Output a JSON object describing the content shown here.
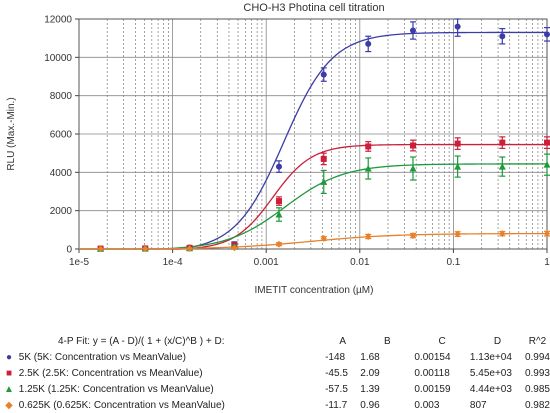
{
  "chart_data": {
    "type": "scatter",
    "title": "CHO-H3 Photina cell titration",
    "xlabel": "IMETIT concentration (µM)",
    "ylabel": "RLU (Max.-Min.)",
    "x_scale": "log",
    "xlim": [
      1e-05,
      1
    ],
    "ylim": [
      0,
      12000
    ],
    "x_ticks": [
      1e-05,
      0.0001,
      0.001,
      0.01,
      0.1,
      1
    ],
    "x_tick_labels": [
      "1e-5",
      "1e-4",
      "0.001",
      "0.01",
      "0.1",
      "1"
    ],
    "y_ticks": [
      0,
      2000,
      4000,
      6000,
      8000,
      10000,
      12000
    ],
    "y_tick_labels": [
      "0",
      "2000",
      "4000",
      "6000",
      "8000",
      "10000",
      "12000"
    ],
    "grid": true,
    "fit_header": {
      "equation": "4-P Fit: y = (A - D)/( 1 + (x/C)^B ) + D:",
      "columns": [
        "A",
        "B",
        "C",
        "D",
        "R^2"
      ]
    },
    "series": [
      {
        "name": "5K (5K: Concentration vs MeanValue)",
        "color": "#3c3ca8",
        "marker": "circle",
        "x": [
          1.7e-05,
          5.1e-05,
          0.000152,
          0.000457,
          0.00137,
          0.00412,
          0.0123,
          0.037,
          0.111,
          0.333,
          1.0
        ],
        "y": [
          30,
          40,
          80,
          250,
          4300,
          9100,
          10700,
          11400,
          11600,
          11100,
          11200
        ],
        "err": [
          40,
          40,
          60,
          120,
          300,
          350,
          400,
          450,
          500,
          400,
          350
        ],
        "fit": {
          "A": "-148",
          "B": "1.68",
          "C": "0.00154",
          "D": "1.13e+04",
          "R2": "0.994"
        },
        "fit_values": {
          "A": -148,
          "B": 1.68,
          "C": 0.00154,
          "D": 11300
        }
      },
      {
        "name": "2.5K (2.5K: Concentration vs MeanValue)",
        "color": "#cc1f3a",
        "marker": "square",
        "x": [
          1.7e-05,
          5.1e-05,
          0.000152,
          0.000457,
          0.00137,
          0.00412,
          0.0123,
          0.037,
          0.111,
          0.333,
          1.0
        ],
        "y": [
          20,
          30,
          60,
          200,
          2500,
          4700,
          5350,
          5400,
          5500,
          5550,
          5550
        ],
        "err": [
          30,
          30,
          50,
          100,
          220,
          300,
          250,
          280,
          300,
          300,
          300
        ],
        "fit": {
          "A": "-45.5",
          "B": "2.09",
          "C": "0.00118",
          "D": "5.45e+03",
          "R2": "0.993"
        },
        "fit_values": {
          "A": -45.5,
          "B": 2.09,
          "C": 0.00118,
          "D": 5450
        }
      },
      {
        "name": "1.25K (1.25K: Concentration vs MeanValue)",
        "color": "#1e9a3c",
        "marker": "triangle",
        "x": [
          1.7e-05,
          5.1e-05,
          0.000152,
          0.000457,
          0.00137,
          0.00412,
          0.0123,
          0.037,
          0.111,
          0.333,
          1.0
        ],
        "y": [
          10,
          20,
          40,
          120,
          1800,
          3500,
          4200,
          4200,
          4300,
          4300,
          4400
        ],
        "err": [
          20,
          20,
          30,
          80,
          350,
          600,
          550,
          600,
          550,
          500,
          550
        ],
        "fit": {
          "A": "-57.5",
          "B": "1.39",
          "C": "0.00159",
          "D": "4.44e+03",
          "R2": "0.985"
        },
        "fit_values": {
          "A": -57.5,
          "B": 1.39,
          "C": 0.00159,
          "D": 4440
        }
      },
      {
        "name": "0.625K (0.625K: Concentration vs MeanValue)",
        "color": "#e8822a",
        "marker": "diamond",
        "x": [
          1.7e-05,
          5.1e-05,
          0.000152,
          0.000457,
          0.00137,
          0.00412,
          0.0123,
          0.037,
          0.111,
          0.333,
          1.0
        ],
        "y": [
          5,
          10,
          20,
          60,
          250,
          550,
          650,
          700,
          780,
          800,
          800
        ],
        "err": [
          15,
          15,
          20,
          40,
          80,
          100,
          110,
          110,
          120,
          110,
          120
        ],
        "fit": {
          "A": "-11.7",
          "B": "0.96",
          "C": "0.003",
          "D": "807",
          "R2": "0.982"
        },
        "fit_values": {
          "A": -11.7,
          "B": 0.96,
          "C": 0.003,
          "D": 807
        }
      }
    ]
  }
}
